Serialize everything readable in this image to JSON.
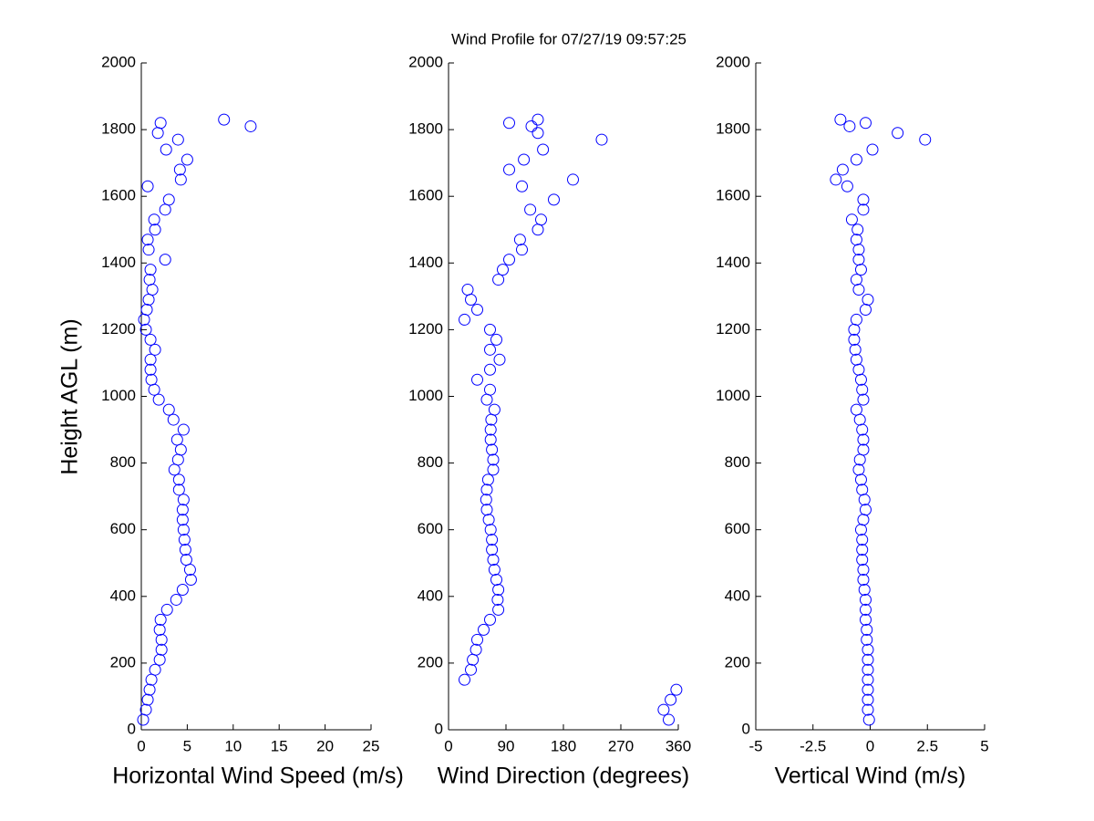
{
  "title": "Wind Profile for  07/27/19 09:57:25",
  "chart_data": [
    {
      "type": "scatter",
      "x_label": "Horizontal Wind Speed (m/s)",
      "y_label": "Height AGL (m)",
      "color": "#0000ff",
      "xlim": [
        0,
        25
      ],
      "xticks": [
        0,
        5,
        10,
        15,
        20,
        25
      ],
      "ylim": [
        0,
        2000
      ],
      "yticks": [
        0,
        200,
        400,
        600,
        800,
        1000,
        1200,
        1400,
        1600,
        1800,
        2000
      ],
      "x": [
        0.2,
        0.5,
        0.7,
        0.9,
        1.1,
        1.5,
        2.0,
        2.2,
        2.2,
        2.0,
        2.1,
        2.8,
        3.8,
        4.5,
        5.4,
        5.3,
        4.9,
        4.8,
        4.7,
        4.6,
        4.5,
        4.5,
        4.6,
        4.1,
        4.1,
        3.6,
        4.0,
        4.3,
        3.9,
        4.6,
        3.5,
        3.0,
        1.9,
        1.4,
        1.1,
        1.0,
        1.0,
        1.5,
        1.0,
        0.5,
        0.3,
        0.6,
        0.8,
        1.2,
        0.9,
        1.0,
        2.6,
        0.8,
        0.7,
        1.5,
        1.4,
        2.6,
        3.0,
        0.7,
        4.3,
        4.2,
        5.0,
        2.7,
        4.0,
        1.8,
        11.9,
        2.1,
        9.0
      ],
      "values": [
        30,
        60,
        90,
        120,
        150,
        180,
        210,
        240,
        270,
        300,
        330,
        360,
        390,
        420,
        450,
        480,
        510,
        540,
        570,
        600,
        630,
        660,
        690,
        720,
        750,
        780,
        810,
        840,
        870,
        900,
        930,
        960,
        990,
        1020,
        1050,
        1080,
        1110,
        1140,
        1170,
        1200,
        1230,
        1260,
        1290,
        1320,
        1350,
        1380,
        1410,
        1440,
        1470,
        1500,
        1530,
        1560,
        1590,
        1630,
        1650,
        1680,
        1710,
        1740,
        1770,
        1790,
        1810,
        1820,
        1830
      ]
    },
    {
      "type": "scatter",
      "x_label": "Wind Direction (degrees)",
      "color": "#0000ff",
      "xlim": [
        0,
        360
      ],
      "xticks": [
        0,
        90,
        180,
        270,
        360
      ],
      "ylim": [
        0,
        2000
      ],
      "yticks": [
        0,
        200,
        400,
        600,
        800,
        1000,
        1200,
        1400,
        1600,
        1800,
        2000
      ],
      "x": [
        345,
        337,
        348,
        357,
        25,
        35,
        38,
        43,
        45,
        55,
        65,
        78,
        77,
        78,
        75,
        72,
        70,
        68,
        68,
        66,
        63,
        60,
        59,
        60,
        62,
        70,
        70,
        68,
        66,
        66,
        67,
        72,
        60,
        65,
        45,
        65,
        80,
        65,
        75,
        65,
        25,
        45,
        35,
        30,
        78,
        85,
        95,
        115,
        112,
        140,
        145,
        128,
        165,
        115,
        195,
        95,
        118,
        148,
        240,
        140,
        130,
        95,
        140
      ],
      "values": [
        30,
        60,
        90,
        120,
        150,
        180,
        210,
        240,
        270,
        300,
        330,
        360,
        390,
        420,
        450,
        480,
        510,
        540,
        570,
        600,
        630,
        660,
        690,
        720,
        750,
        780,
        810,
        840,
        870,
        900,
        930,
        960,
        990,
        1020,
        1050,
        1080,
        1110,
        1140,
        1170,
        1200,
        1230,
        1260,
        1290,
        1320,
        1350,
        1380,
        1410,
        1440,
        1470,
        1500,
        1530,
        1560,
        1590,
        1630,
        1650,
        1680,
        1710,
        1740,
        1770,
        1790,
        1810,
        1820,
        1830
      ]
    },
    {
      "type": "scatter",
      "x_label": "Vertical Wind (m/s)",
      "color": "#0000ff",
      "xlim": [
        -5,
        5
      ],
      "xticks": [
        -5,
        -2.5,
        0,
        2.5,
        5
      ],
      "ylim": [
        0,
        2000
      ],
      "yticks": [
        0,
        200,
        400,
        600,
        800,
        1000,
        1200,
        1400,
        1600,
        1800,
        2000
      ],
      "x": [
        -0.05,
        -0.1,
        -0.1,
        -0.1,
        -0.1,
        -0.1,
        -0.1,
        -0.1,
        -0.15,
        -0.15,
        -0.2,
        -0.2,
        -0.2,
        -0.25,
        -0.3,
        -0.3,
        -0.35,
        -0.35,
        -0.35,
        -0.4,
        -0.3,
        -0.2,
        -0.25,
        -0.35,
        -0.4,
        -0.5,
        -0.45,
        -0.3,
        -0.3,
        -0.35,
        -0.45,
        -0.6,
        -0.3,
        -0.35,
        -0.4,
        -0.5,
        -0.6,
        -0.65,
        -0.7,
        -0.7,
        -0.6,
        -0.2,
        -0.1,
        -0.5,
        -0.6,
        -0.4,
        -0.5,
        -0.5,
        -0.6,
        -0.55,
        -0.8,
        -0.3,
        -0.3,
        -1.0,
        -1.5,
        -1.2,
        -0.6,
        0.1,
        2.4,
        1.2,
        -0.9,
        -0.2,
        -1.3
      ],
      "values": [
        30,
        60,
        90,
        120,
        150,
        180,
        210,
        240,
        270,
        300,
        330,
        360,
        390,
        420,
        450,
        480,
        510,
        540,
        570,
        600,
        630,
        660,
        690,
        720,
        750,
        780,
        810,
        840,
        870,
        900,
        930,
        960,
        990,
        1020,
        1050,
        1080,
        1110,
        1140,
        1170,
        1200,
        1230,
        1260,
        1290,
        1320,
        1350,
        1380,
        1410,
        1440,
        1470,
        1500,
        1530,
        1560,
        1590,
        1630,
        1650,
        1680,
        1710,
        1740,
        1770,
        1790,
        1810,
        1820,
        1830
      ]
    }
  ]
}
